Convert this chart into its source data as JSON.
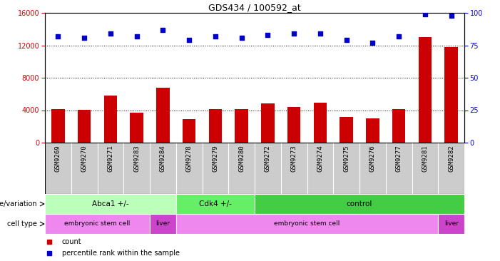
{
  "title": "GDS434 / 100592_at",
  "samples": [
    "GSM9269",
    "GSM9270",
    "GSM9271",
    "GSM9283",
    "GSM9284",
    "GSM9278",
    "GSM9279",
    "GSM9280",
    "GSM9272",
    "GSM9273",
    "GSM9274",
    "GSM9275",
    "GSM9276",
    "GSM9277",
    "GSM9281",
    "GSM9282"
  ],
  "counts": [
    4100,
    4050,
    5800,
    3700,
    6800,
    2900,
    4100,
    4100,
    4800,
    4400,
    4900,
    3200,
    3000,
    4100,
    13000,
    11800
  ],
  "percentiles": [
    82,
    81,
    84,
    82,
    87,
    79,
    82,
    81,
    83,
    84,
    84,
    79,
    77,
    82,
    99,
    98
  ],
  "bar_color": "#cc0000",
  "dot_color": "#0000cc",
  "ylim_left": [
    0,
    16000
  ],
  "ylim_right": [
    0,
    100
  ],
  "yticks_left": [
    0,
    4000,
    8000,
    12000,
    16000
  ],
  "yticks_right": [
    0,
    25,
    50,
    75,
    100
  ],
  "background_color": "#ffffff",
  "tick_bg_color": "#cccccc",
  "genotype_groups": [
    {
      "label": "Abca1 +/-",
      "start": 0,
      "end": 5,
      "color": "#bbffbb"
    },
    {
      "label": "Cdk4 +/-",
      "start": 5,
      "end": 8,
      "color": "#66ee66"
    },
    {
      "label": "control",
      "start": 8,
      "end": 16,
      "color": "#44cc44"
    }
  ],
  "celltype_groups": [
    {
      "label": "embryonic stem cell",
      "start": 0,
      "end": 4,
      "color": "#ee88ee"
    },
    {
      "label": "liver",
      "start": 4,
      "end": 5,
      "color": "#cc44cc"
    },
    {
      "label": "embryonic stem cell",
      "start": 5,
      "end": 15,
      "color": "#ee88ee"
    },
    {
      "label": "liver",
      "start": 15,
      "end": 16,
      "color": "#cc44cc"
    }
  ],
  "legend_items": [
    {
      "label": "count",
      "color": "#cc0000"
    },
    {
      "label": "percentile rank within the sample",
      "color": "#0000cc"
    }
  ],
  "geno_label": "genotype/variation",
  "cell_label": "cell type"
}
